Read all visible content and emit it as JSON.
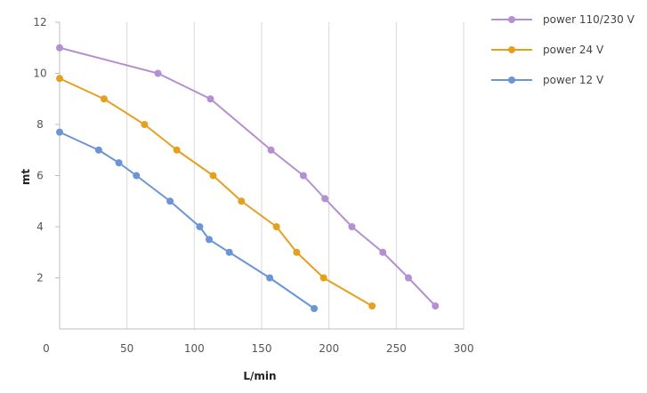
{
  "chart_data": {
    "type": "line",
    "title": "",
    "xlabel": "L/min",
    "ylabel": "mt",
    "xlim": [
      0,
      300
    ],
    "ylim": [
      0,
      12
    ],
    "xticks": [
      0,
      50,
      100,
      150,
      200,
      250,
      300
    ],
    "yticks": [
      2,
      4,
      6,
      8,
      10,
      12
    ],
    "grid": "vertical",
    "legend": "top-right",
    "series": [
      {
        "name": "power 110/230 V",
        "color": "#b48fd1",
        "points": [
          [
            0,
            11
          ],
          [
            73,
            10
          ],
          [
            112,
            9
          ],
          [
            157,
            7
          ],
          [
            181,
            6
          ],
          [
            197,
            5.1
          ],
          [
            217,
            4
          ],
          [
            240,
            3
          ],
          [
            259,
            2
          ],
          [
            279,
            0.9
          ]
        ]
      },
      {
        "name": "power 24 V",
        "color": "#e6a020",
        "points": [
          [
            0,
            9.8
          ],
          [
            33,
            9
          ],
          [
            63,
            8
          ],
          [
            87,
            7
          ],
          [
            114,
            6
          ],
          [
            135,
            5
          ],
          [
            161,
            4
          ],
          [
            176,
            3
          ],
          [
            196,
            2
          ],
          [
            232,
            0.9
          ]
        ]
      },
      {
        "name": "power 12 V",
        "color": "#6b95d6",
        "points": [
          [
            0,
            7.7
          ],
          [
            29,
            7
          ],
          [
            44,
            6.5
          ],
          [
            57,
            6
          ],
          [
            82,
            5
          ],
          [
            104,
            4
          ],
          [
            111,
            3.5
          ],
          [
            126,
            3
          ],
          [
            156,
            2
          ],
          [
            189,
            0.8
          ]
        ]
      }
    ]
  }
}
